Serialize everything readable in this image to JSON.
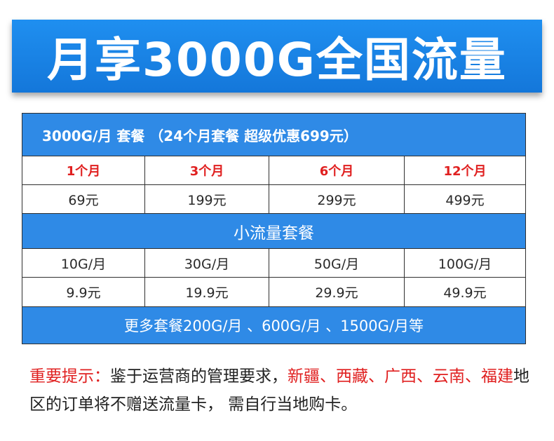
{
  "banner": {
    "title": "月享3000G全国流量"
  },
  "main_plan": {
    "header": "3000G/月 套餐 （24个月套餐 超级优惠699元）",
    "durations": [
      "1个月",
      "3个月",
      "6个月",
      "12个月"
    ],
    "prices": [
      "69元",
      "199元",
      "299元",
      "499元"
    ]
  },
  "small_plan": {
    "header": "小流量套餐",
    "sizes": [
      "10G/月",
      "30G/月",
      "50G/月",
      "100G/月"
    ],
    "prices": [
      "9.9元",
      "19.9元",
      "29.9元",
      "49.9元"
    ]
  },
  "more": {
    "text": "更多套餐200G/月 、600G/月 、1500G/月等"
  },
  "notice": {
    "label": "重要提示：",
    "part1": "鉴于运营商的管理要求，",
    "regions1": "新疆、西藏、广西、",
    "regions2": "云南、福建",
    "part2": "地区的订单将不赠送流量卡， 需自行当地购卡。"
  },
  "colors": {
    "banner_blue": "#1f8ff0",
    "table_blue": "#2f8ae6",
    "highlight_red": "#e02020"
  }
}
